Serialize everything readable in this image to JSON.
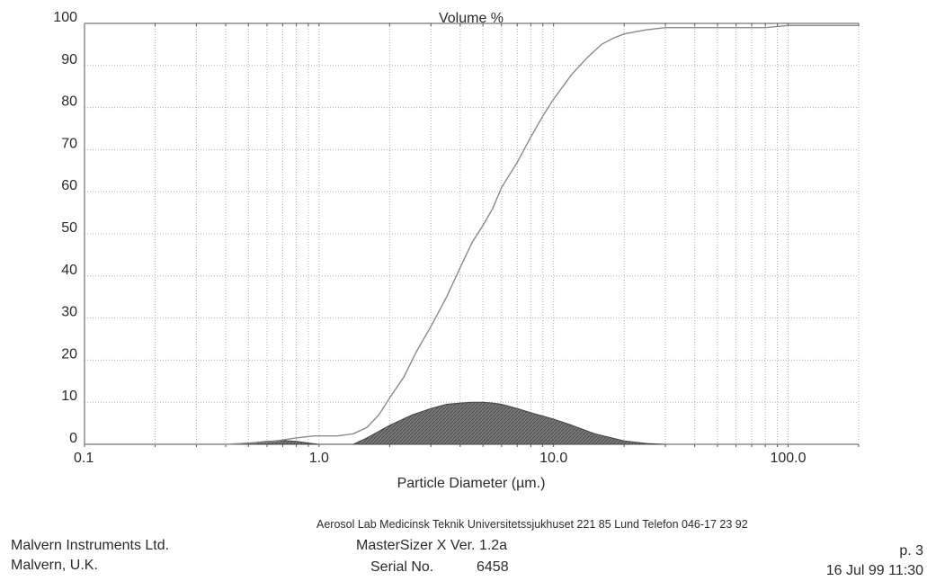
{
  "chart_data": {
    "type": "line",
    "title": "Volume %",
    "xlabel": "Particle Diameter (µm.)",
    "x_scale": "log",
    "xlim": [
      0.1,
      200
    ],
    "ylim": [
      0,
      100
    ],
    "x_tick_labels": [
      {
        "value": 0.1,
        "label": "0.1"
      },
      {
        "value": 1,
        "label": "1.0"
      },
      {
        "value": 10,
        "label": "10.0"
      },
      {
        "value": 100,
        "label": "100.0"
      }
    ],
    "y_ticks": [
      0,
      10,
      20,
      30,
      40,
      50,
      60,
      70,
      80,
      90,
      100
    ],
    "grid": true,
    "series": [
      {
        "kind": "cumulative-line",
        "x": [
          0.1,
          0.4,
          0.6,
          0.8,
          0.95,
          1.2,
          1.4,
          1.6,
          1.8,
          2.0,
          2.3,
          2.6,
          3.0,
          3.5,
          4.0,
          4.5,
          5.0,
          5.5,
          6.0,
          7.0,
          8.0,
          9.0,
          10,
          12,
          14,
          16,
          18,
          20,
          25,
          30,
          50,
          80,
          100,
          200
        ],
        "y": [
          0,
          0,
          0.5,
          1.5,
          2,
          2,
          2.5,
          4,
          7,
          11,
          16,
          22,
          28,
          35,
          42,
          48,
          52,
          56,
          61,
          67,
          73,
          78,
          82,
          88,
          92,
          95,
          96.5,
          97.5,
          98.5,
          99,
          99,
          99,
          99.5,
          99.5
        ]
      },
      {
        "kind": "shaded-distribution",
        "x": [
          0.4,
          0.5,
          0.6,
          0.7,
          0.8,
          0.9,
          1.0,
          1.2,
          1.4,
          1.6,
          2.0,
          2.5,
          3.0,
          3.5,
          4.0,
          4.5,
          5.0,
          5.5,
          6.0,
          7.0,
          8.0,
          10,
          12,
          15,
          20,
          25,
          30
        ],
        "y": [
          0,
          0.3,
          0.7,
          0.9,
          0.7,
          0.3,
          0,
          0,
          0,
          1.5,
          4.5,
          7,
          8.5,
          9.5,
          9.8,
          10,
          10,
          9.8,
          9.5,
          8.5,
          7.5,
          6,
          4.5,
          2.5,
          0.8,
          0.2,
          0
        ]
      }
    ],
    "colors": {
      "line": "#8a8a8a",
      "fill": "#6f6f6f",
      "grid": "#b0b0b0",
      "text": "#2a2a2a"
    }
  },
  "footer": {
    "note": "Aerosol Lab Medicinsk Teknik Universitetssjukhuset 221 85 Lund Telefon 046-17 23 92",
    "company_name": "Malvern Instruments Ltd.",
    "company_location": "Malvern, U.K.",
    "product": "MasterSizer X Ver. 1.2a",
    "serial_label": "Serial No.",
    "serial_value": "6458",
    "page": "p.  3",
    "timestamp": "16 Jul 99 11:30"
  }
}
